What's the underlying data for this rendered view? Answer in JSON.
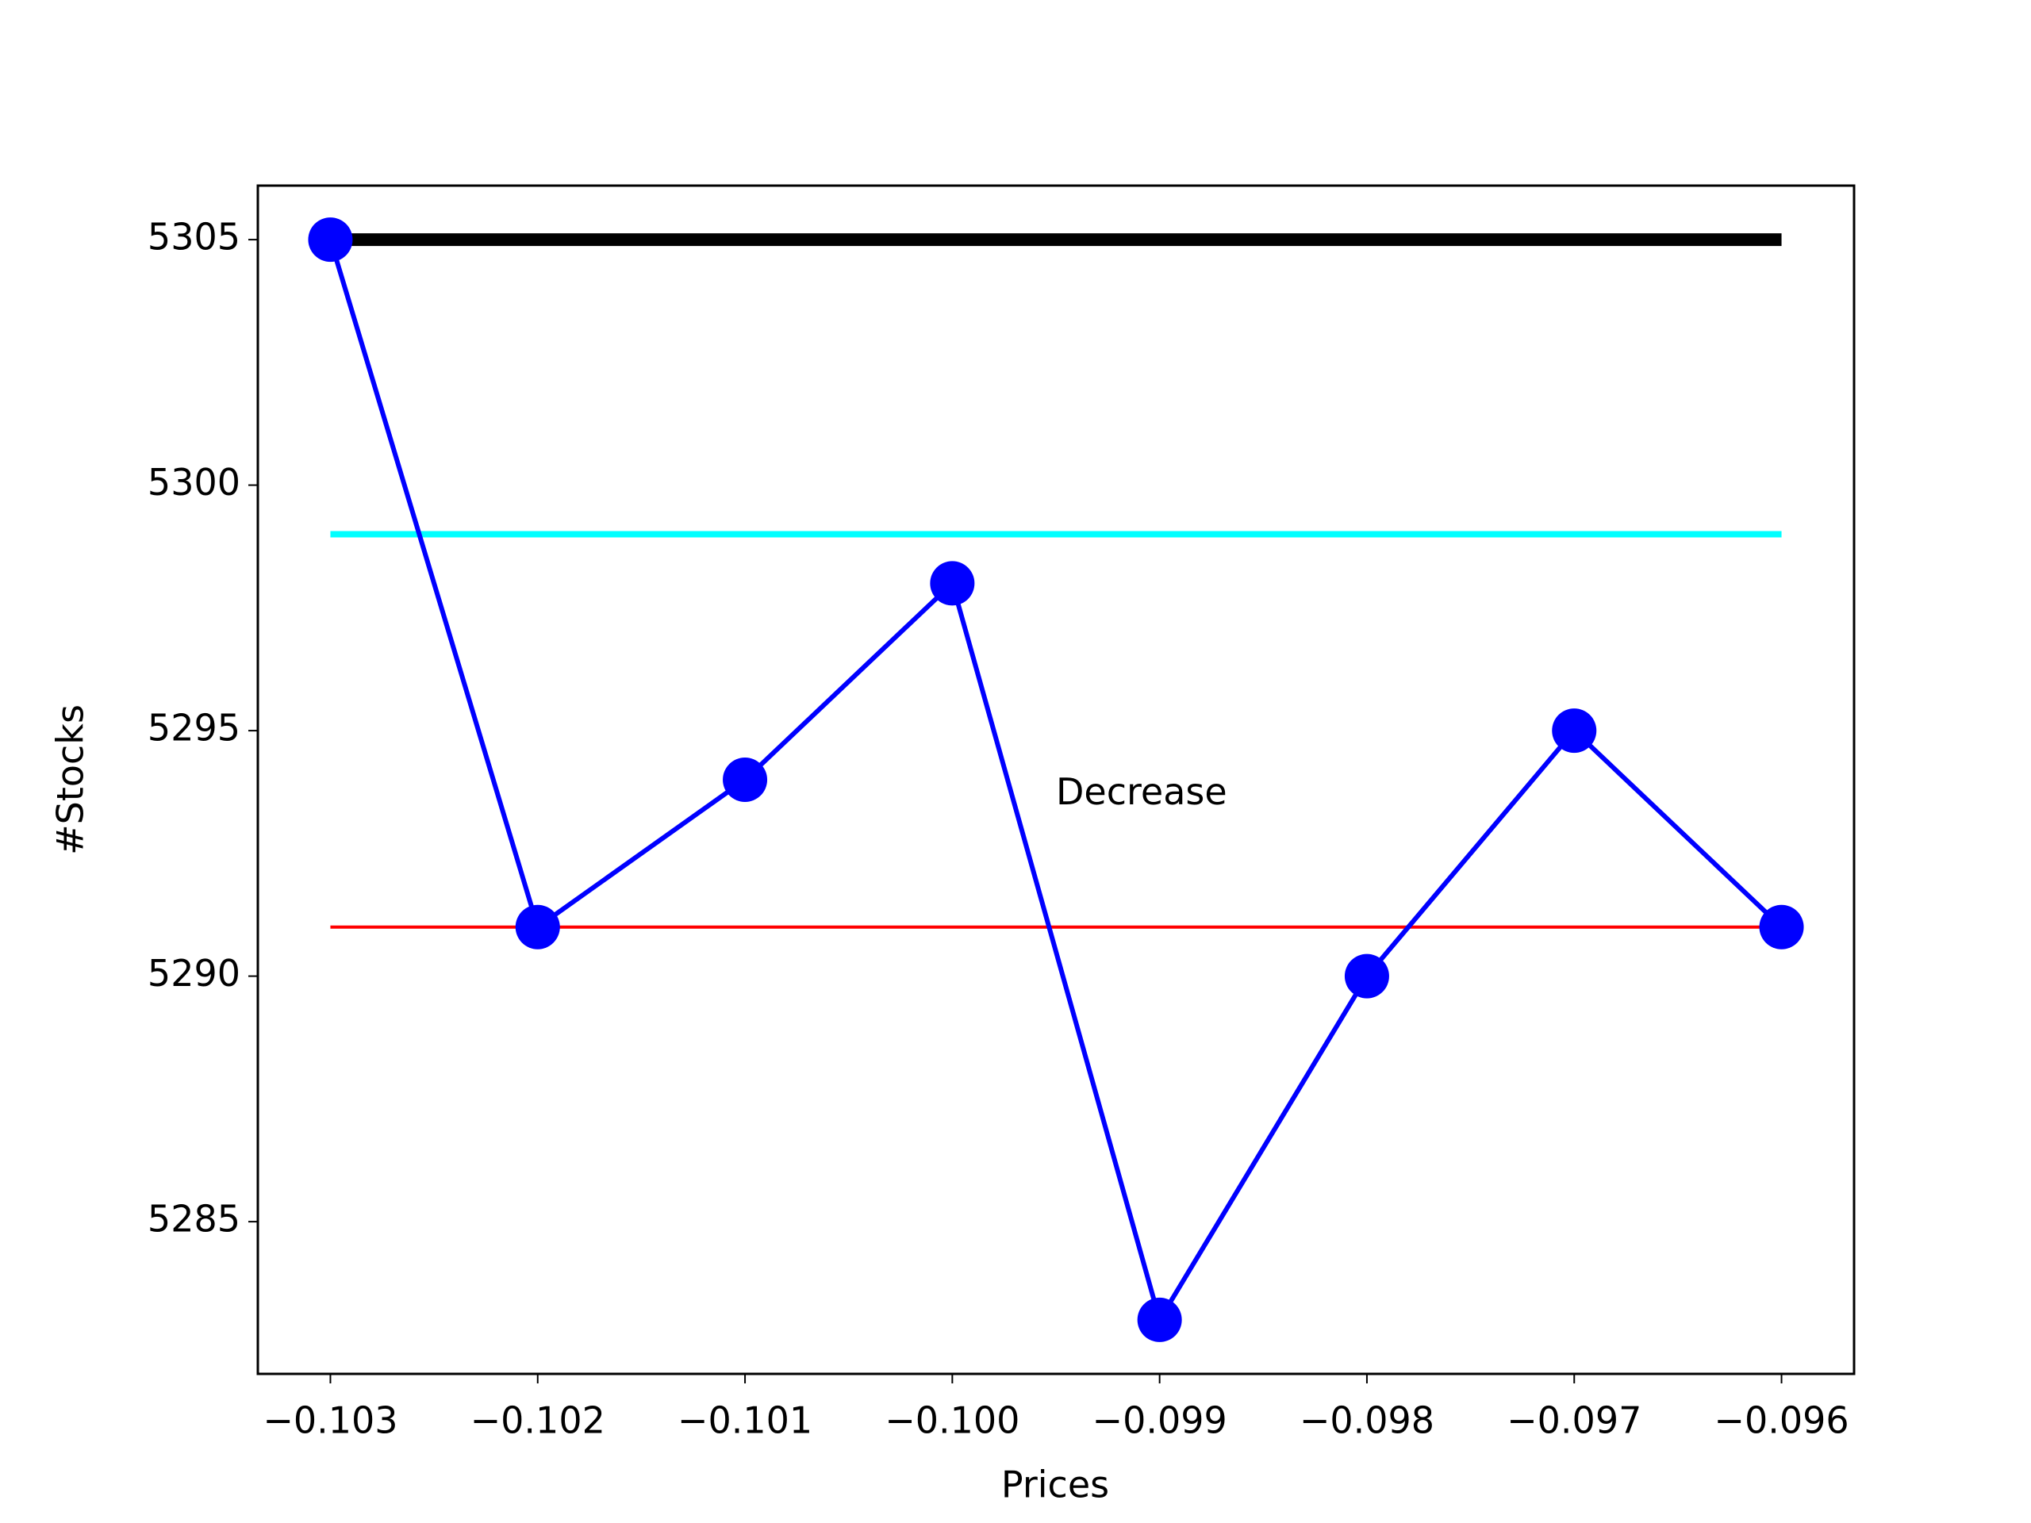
{
  "chart_data": {
    "type": "line",
    "x_label": "Prices",
    "y_label": "#Stocks",
    "x": [
      -0.103,
      -0.102,
      -0.101,
      -0.1,
      -0.099,
      -0.098,
      -0.097,
      -0.096
    ],
    "series": [
      {
        "color": "#0000ff",
        "values": [
          5305,
          5291,
          5294,
          5298,
          5283,
          5290,
          5295,
          5291
        ]
      }
    ],
    "hlines": [
      {
        "y": 5305,
        "xmin": -0.103,
        "xmax": -0.096,
        "color": "#000000"
      },
      {
        "y": 5299,
        "xmin": -0.103,
        "xmax": -0.096,
        "color": "#00ffff"
      },
      {
        "y": 5291,
        "xmin": -0.103,
        "xmax": -0.096,
        "color": "#ff0000"
      }
    ],
    "annotation": {
      "text": "Decrease",
      "x": -0.0995,
      "y": 5293.5
    },
    "xlim": [
      -0.10335,
      -0.09565
    ],
    "ylim": [
      5281.9,
      5306.1
    ],
    "xticks": [
      {
        "value": -0.103,
        "label": "−0.103"
      },
      {
        "value": -0.102,
        "label": "−0.102"
      },
      {
        "value": -0.101,
        "label": "−0.101"
      },
      {
        "value": -0.1,
        "label": "−0.100"
      },
      {
        "value": -0.099,
        "label": "−0.099"
      },
      {
        "value": -0.098,
        "label": "−0.098"
      },
      {
        "value": -0.097,
        "label": "−0.097"
      },
      {
        "value": -0.096,
        "label": "−0.096"
      }
    ],
    "yticks": [
      5285,
      5290,
      5295,
      5300,
      5305
    ],
    "grid": false
  }
}
